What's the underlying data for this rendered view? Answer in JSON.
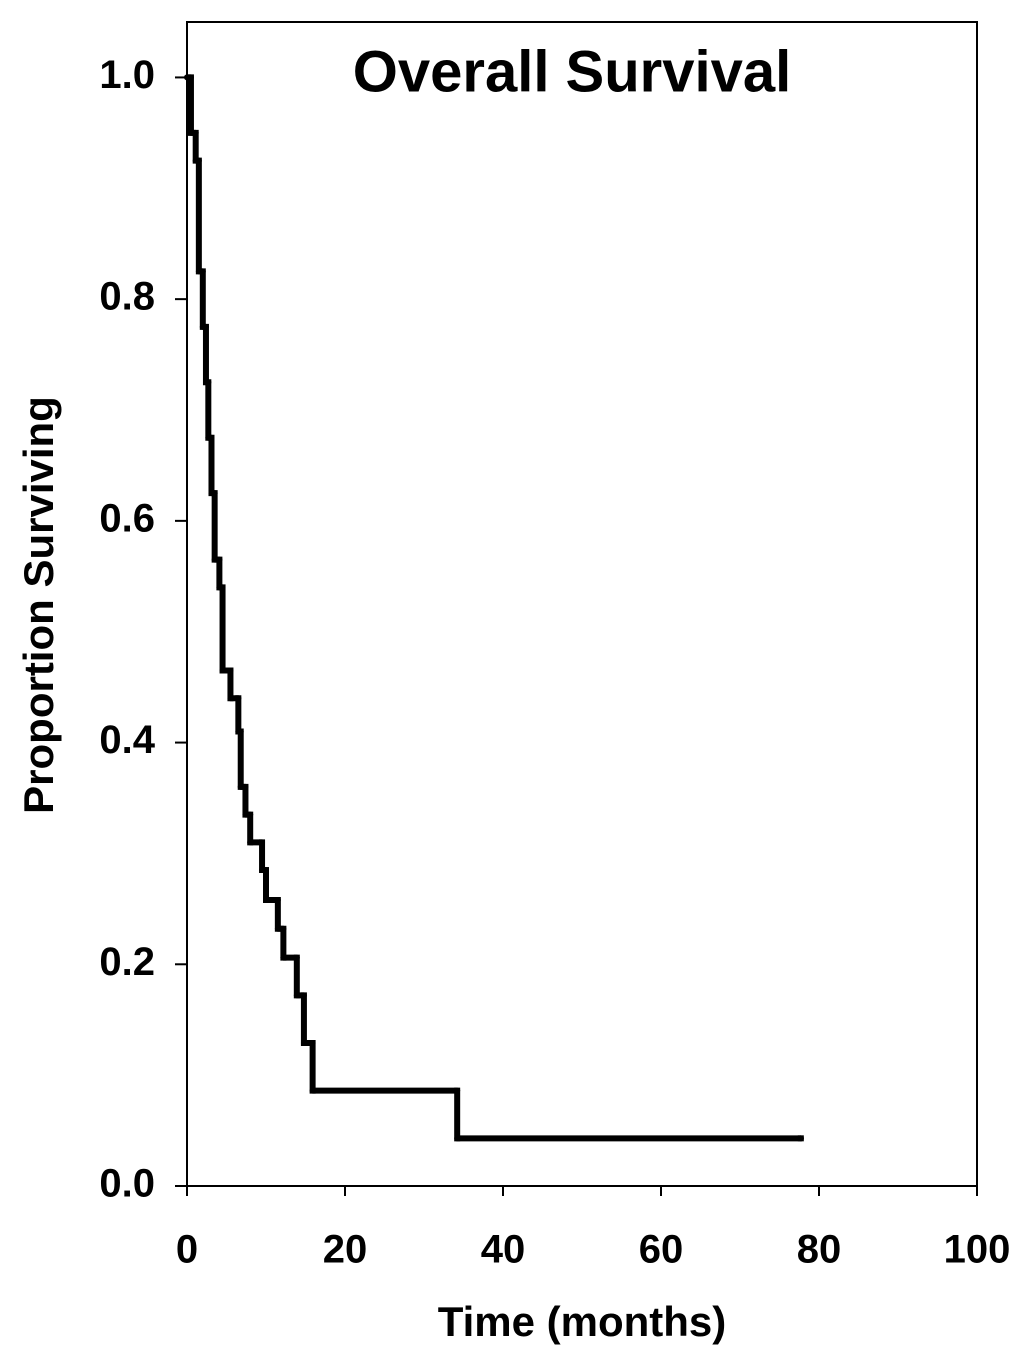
{
  "chart_data": {
    "type": "step",
    "title": "Overall Survival",
    "x_label": "Time (months)",
    "y_label": "Proportion Surviving",
    "x": [
      0,
      0.5,
      1.1,
      1.5,
      2.0,
      2.4,
      2.7,
      3.1,
      3.5,
      4.1,
      4.5,
      5.5,
      6.5,
      6.8,
      7.4,
      8.0,
      9.5,
      10.0,
      11.5,
      12.2,
      13.9,
      14.8,
      15.9,
      34.2,
      77.7
    ],
    "y": [
      1.0,
      0.95,
      0.925,
      0.825,
      0.775,
      0.725,
      0.675,
      0.625,
      0.565,
      0.54,
      0.465,
      0.44,
      0.41,
      0.36,
      0.335,
      0.31,
      0.285,
      0.258,
      0.232,
      0.206,
      0.172,
      0.129,
      0.086,
      0.043,
      0.043
    ],
    "color": "#000000",
    "xlim": [
      0,
      100
    ],
    "xticks": [
      0,
      20,
      40,
      60,
      80,
      100
    ],
    "ylim": [
      0,
      1.05
    ],
    "yticks": [
      {
        "value": 0,
        "label": "0.0"
      },
      0.2,
      0.4,
      0.6,
      0.8,
      {
        "value": 1,
        "label": "1.0"
      }
    ]
  }
}
